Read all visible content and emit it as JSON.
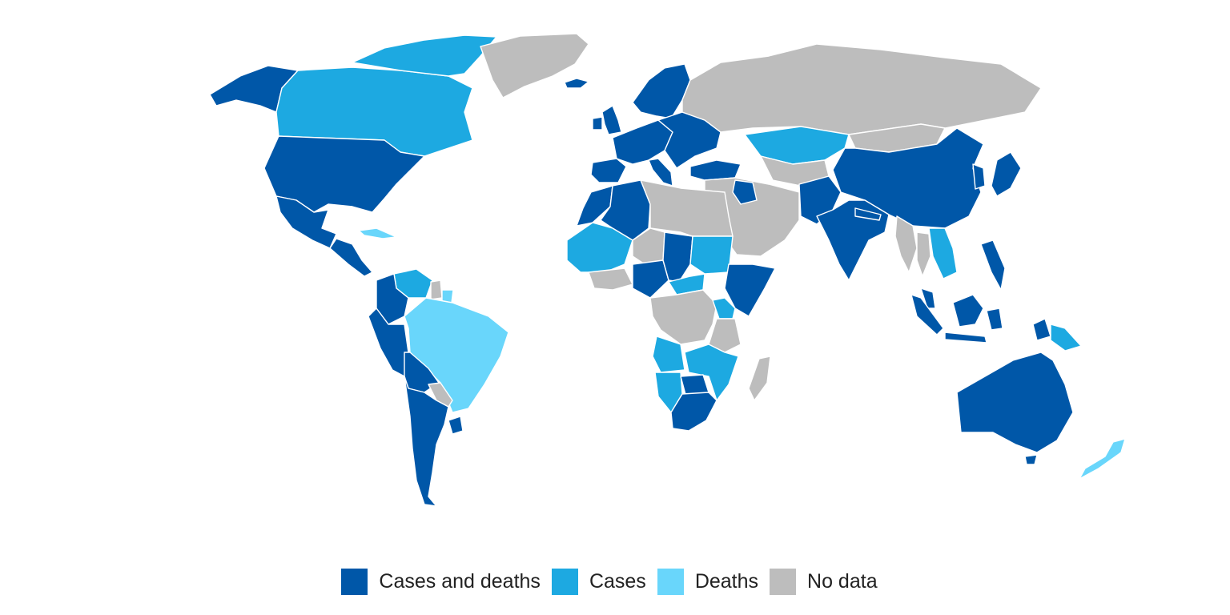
{
  "colors": {
    "cases_and_deaths": "#0057A8",
    "cases": "#1DA9E1",
    "deaths": "#69D6FB",
    "no_data": "#BDBDBD"
  },
  "legend": {
    "items": [
      {
        "key": "cases_and_deaths",
        "label": "Cases and deaths"
      },
      {
        "key": "cases",
        "label": "Cases"
      },
      {
        "key": "deaths",
        "label": "Deaths"
      },
      {
        "key": "no_data",
        "label": "No data"
      }
    ]
  },
  "regions": [
    {
      "name": "alaska",
      "category": "cases_and_deaths"
    },
    {
      "name": "canada",
      "category": "cases"
    },
    {
      "name": "canadian-arctic-islands",
      "category": "cases"
    },
    {
      "name": "greenland",
      "category": "no_data"
    },
    {
      "name": "united-states",
      "category": "cases_and_deaths"
    },
    {
      "name": "mexico",
      "category": "cases_and_deaths"
    },
    {
      "name": "central-america",
      "category": "cases_and_deaths"
    },
    {
      "name": "cuba",
      "category": "deaths"
    },
    {
      "name": "iceland",
      "category": "cases_and_deaths"
    },
    {
      "name": "venezuela-guyana",
      "category": "cases"
    },
    {
      "name": "suriname",
      "category": "no_data"
    },
    {
      "name": "french-guiana",
      "category": "deaths"
    },
    {
      "name": "colombia",
      "category": "cases_and_deaths"
    },
    {
      "name": "ecuador-peru",
      "category": "cases_and_deaths"
    },
    {
      "name": "brazil",
      "category": "deaths"
    },
    {
      "name": "bolivia",
      "category": "cases_and_deaths"
    },
    {
      "name": "paraguay",
      "category": "no_data"
    },
    {
      "name": "uruguay",
      "category": "cases_and_deaths"
    },
    {
      "name": "argentina-chile",
      "category": "cases_and_deaths"
    },
    {
      "name": "scandinavia",
      "category": "cases_and_deaths"
    },
    {
      "name": "united-kingdom",
      "category": "cases_and_deaths"
    },
    {
      "name": "ireland",
      "category": "cases_and_deaths"
    },
    {
      "name": "western-europe",
      "category": "cases_and_deaths"
    },
    {
      "name": "iberia",
      "category": "cases_and_deaths"
    },
    {
      "name": "italy",
      "category": "cases_and_deaths"
    },
    {
      "name": "eastern-europe",
      "category": "cases_and_deaths"
    },
    {
      "name": "turkey",
      "category": "cases_and_deaths"
    },
    {
      "name": "russia",
      "category": "no_data"
    },
    {
      "name": "kazakhstan",
      "category": "cases"
    },
    {
      "name": "central-asia",
      "category": "no_data"
    },
    {
      "name": "middle-east",
      "category": "no_data"
    },
    {
      "name": "iraq",
      "category": "cases_and_deaths"
    },
    {
      "name": "afghanistan-pakistan",
      "category": "cases_and_deaths"
    },
    {
      "name": "india",
      "category": "cases_and_deaths"
    },
    {
      "name": "nepal",
      "category": "cases_and_deaths"
    },
    {
      "name": "china",
      "category": "cases_and_deaths"
    },
    {
      "name": "mongolia",
      "category": "no_data"
    },
    {
      "name": "korea",
      "category": "cases_and_deaths"
    },
    {
      "name": "japan",
      "category": "cases_and_deaths"
    },
    {
      "name": "myanmar",
      "category": "no_data"
    },
    {
      "name": "thailand",
      "category": "no_data"
    },
    {
      "name": "vietnam-laos",
      "category": "cases"
    },
    {
      "name": "philippines",
      "category": "cases_and_deaths"
    },
    {
      "name": "malaysia",
      "category": "cases_and_deaths"
    },
    {
      "name": "sumatra",
      "category": "cases_and_deaths"
    },
    {
      "name": "java",
      "category": "cases_and_deaths"
    },
    {
      "name": "borneo",
      "category": "cases_and_deaths"
    },
    {
      "name": "sulawesi",
      "category": "cases_and_deaths"
    },
    {
      "name": "new-guinea-west",
      "category": "cases_and_deaths"
    },
    {
      "name": "papua-new-guinea",
      "category": "cases"
    },
    {
      "name": "australia",
      "category": "cases_and_deaths"
    },
    {
      "name": "tasmania",
      "category": "cases_and_deaths"
    },
    {
      "name": "new-zealand",
      "category": "deaths"
    },
    {
      "name": "north-africa-west",
      "category": "cases_and_deaths"
    },
    {
      "name": "algeria",
      "category": "cases_and_deaths"
    },
    {
      "name": "libya-egypt",
      "category": "no_data"
    },
    {
      "name": "sahel-west",
      "category": "cases"
    },
    {
      "name": "west-africa-coast",
      "category": "no_data"
    },
    {
      "name": "nigeria",
      "category": "cases_and_deaths"
    },
    {
      "name": "chad",
      "category": "cases_and_deaths"
    },
    {
      "name": "niger",
      "category": "no_data"
    },
    {
      "name": "sudan",
      "category": "cases"
    },
    {
      "name": "ethiopia-somalia",
      "category": "cases_and_deaths"
    },
    {
      "name": "central-african-republic",
      "category": "cases"
    },
    {
      "name": "congo",
      "category": "no_data"
    },
    {
      "name": "east-africa",
      "category": "cases"
    },
    {
      "name": "tanzania",
      "category": "no_data"
    },
    {
      "name": "angola",
      "category": "cases"
    },
    {
      "name": "zambia-mozambique",
      "category": "cases"
    },
    {
      "name": "namibia",
      "category": "cases"
    },
    {
      "name": "botswana",
      "category": "cases_and_deaths"
    },
    {
      "name": "south-africa",
      "category": "cases_and_deaths"
    },
    {
      "name": "madagascar",
      "category": "no_data"
    }
  ]
}
